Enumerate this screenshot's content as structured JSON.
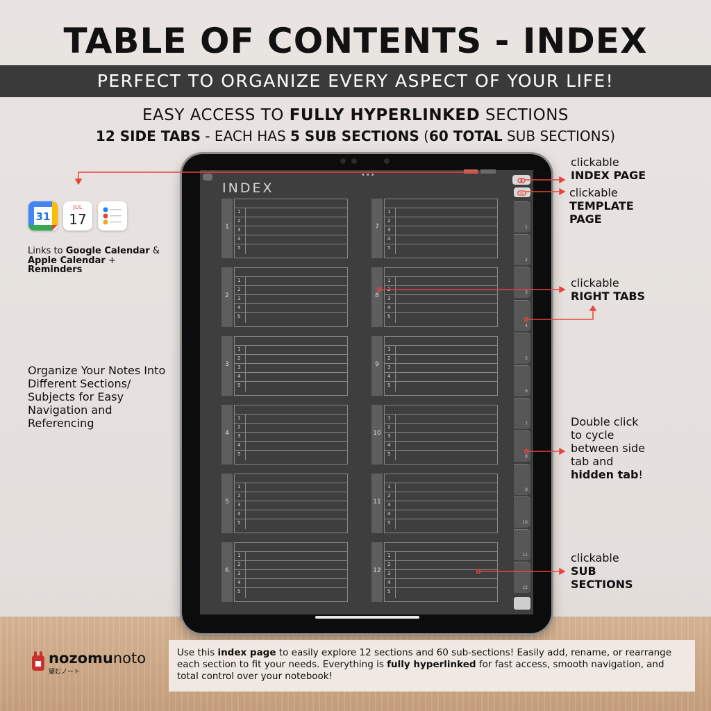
{
  "title": "TABLE OF CONTENTS - INDEX",
  "banner": "PERFECT TO ORGANIZE EVERY ASPECT OF YOUR LIFE!",
  "subtitle": {
    "line1_a": "EASY ACCESS TO ",
    "line1_b": "FULLY HYPERLINKED",
    "line1_c": " SECTIONS",
    "line2_a": "12 SIDE TABS",
    "line2_b": " - EACH HAS ",
    "line2_c": "5 SUB SECTIONS",
    "line2_d": " (",
    "line2_e": "60 TOTAL",
    "line2_f": " SUB SECTIONS)"
  },
  "screen": {
    "heading": "INDEX",
    "sections": [
      "1",
      "2",
      "3",
      "4",
      "5",
      "6",
      "7",
      "8",
      "9",
      "10",
      "11",
      "12"
    ],
    "sub_rows": [
      "1",
      "2",
      "3",
      "4",
      "5"
    ],
    "right_tabs": [
      "1",
      "2",
      "3",
      "4",
      "5",
      "6",
      "7",
      "8",
      "9",
      "10",
      "11",
      "12"
    ]
  },
  "callouts": {
    "index_page_a": "clickable",
    "index_page_b": "INDEX PAGE",
    "template_a": "clickable",
    "template_b": "TEMPLATE",
    "template_c": "PAGE",
    "right_tabs_a": "clickable",
    "right_tabs_b": "RIGHT TABS",
    "double_a": "Double click",
    "double_b": "to cycle",
    "double_c": "between side",
    "double_d": "tab and",
    "double_e": "hidden tab",
    "double_f": "!",
    "sub_a": "clickable",
    "sub_b": "SUB",
    "sub_c": "SECTIONS"
  },
  "links": {
    "a": "Links to ",
    "b": "Google Calendar",
    "c": " &",
    "d": "Apple Calendar",
    "e": " +",
    "f": "Reminders"
  },
  "apps": {
    "gcal_day": "31",
    "acal_month": "JUL",
    "acal_day": "17"
  },
  "organize": "Organize Your Notes Into Different Sections/ Subjects for Easy Navigation and Referencing",
  "footer": {
    "a": "Use this ",
    "b": "index page",
    "c": " to easily explore 12 sections and 60 sub-sections! Easily add, rename, or rearrange each section to fit your needs. Everything is ",
    "d": "fully hyperlinked",
    "e": " for fast access, smooth navigation, and total control over your notebook!"
  },
  "brand": {
    "name_a": "nozomu",
    "name_b": "noto",
    "tag": "望むノート"
  },
  "colors": {
    "accent": "#e8453c",
    "banner": "#3a3a3a",
    "screen": "#3e3e3e"
  }
}
